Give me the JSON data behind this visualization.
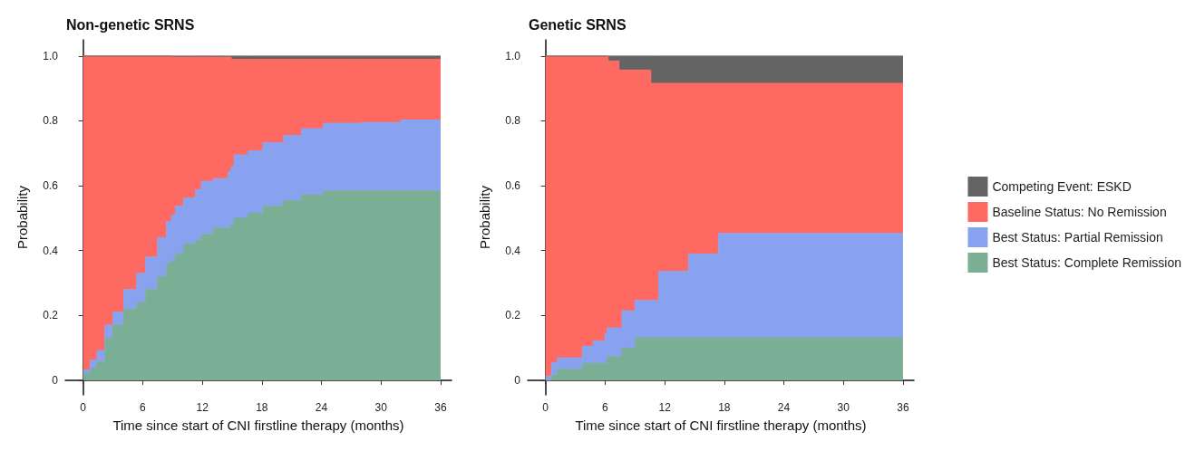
{
  "chart_data": [
    {
      "type": "area",
      "title": "Non-genetic SRNS",
      "xlabel": "Time since start of CNI firstline therapy (months)",
      "ylabel": "Probability",
      "stacked": true,
      "legend": false,
      "grid": false,
      "x": [
        0,
        0.7,
        0.7,
        1.4,
        1.4,
        2.2,
        2.2,
        3.0,
        3.0,
        4.1,
        4.1,
        5.4,
        5.4,
        6.3,
        6.3,
        7.5,
        7.5,
        8.4,
        8.4,
        8.9,
        8.9,
        9.3,
        9.3,
        10.1,
        10.1,
        11.3,
        11.3,
        11.9,
        11.9,
        13.1,
        13.1,
        14.6,
        14.6,
        14.9,
        14.9,
        15.2,
        15.2,
        16.6,
        16.6,
        18.1,
        18.1,
        20.2,
        20.2,
        22.0,
        22.0,
        24.2,
        24.2,
        28,
        28,
        32,
        32,
        36,
        36
      ],
      "xlim": [
        -1.8,
        37.1
      ],
      "xticks": [
        0,
        6,
        12,
        18,
        24,
        30,
        36
      ],
      "ylim": [
        -0.045,
        1.05
      ],
      "yticks": [
        0,
        0.2,
        0.4,
        0.6,
        0.8,
        {
          "value": 1,
          "label": "1.0"
        }
      ],
      "series": [
        {
          "color": "#7aaf95",
          "values": [
            0.02,
            0.02,
            0.037,
            0.037,
            0.058,
            0.058,
            0.13,
            0.13,
            0.17,
            0.17,
            0.22,
            0.22,
            0.24,
            0.24,
            0.28,
            0.28,
            0.32,
            0.32,
            0.36,
            0.36,
            0.37,
            0.37,
            0.39,
            0.39,
            0.42,
            0.42,
            0.43,
            0.43,
            0.45,
            0.45,
            0.47,
            0.47,
            0.47,
            0.47,
            0.48,
            0.48,
            0.5,
            0.5,
            0.515,
            0.515,
            0.537,
            0.537,
            0.554,
            0.554,
            0.571,
            0.571,
            0.584,
            0.584,
            0.584,
            0.584,
            0.584,
            0.584,
            0.584
          ]
        },
        {
          "color": "#89a2f0",
          "values": [
            0.012,
            0.012,
            0.025,
            0.025,
            0.034,
            0.034,
            0.04,
            0.04,
            0.04,
            0.04,
            0.06,
            0.06,
            0.09,
            0.09,
            0.1,
            0.1,
            0.12,
            0.12,
            0.13,
            0.13,
            0.14,
            0.14,
            0.147,
            0.147,
            0.142,
            0.142,
            0.158,
            0.158,
            0.164,
            0.164,
            0.152,
            0.152,
            0.173,
            0.173,
            0.18,
            0.18,
            0.195,
            0.195,
            0.193,
            0.193,
            0.196,
            0.196,
            0.201,
            0.201,
            0.205,
            0.205,
            0.209,
            0.209,
            0.211,
            0.211,
            0.219,
            0.219,
            0.219
          ]
        },
        {
          "color": "#fe6a62",
          "values": [
            0.968,
            0.968,
            0.938,
            0.938,
            0.908,
            0.908,
            0.83,
            0.83,
            0.79,
            0.79,
            0.72,
            0.72,
            0.67,
            0.67,
            0.62,
            0.62,
            0.56,
            0.56,
            0.51,
            0.51,
            0.487,
            0.487,
            0.46,
            0.46,
            0.435,
            0.435,
            0.409,
            0.409,
            0.383,
            0.383,
            0.375,
            0.375,
            0.354,
            0.354,
            0.33,
            0.33,
            0.295,
            0.295,
            0.282,
            0.282,
            0.257,
            0.257,
            0.235,
            0.235,
            0.214,
            0.214,
            0.197,
            0.197,
            0.195,
            0.195,
            0.187,
            0.187,
            0.187
          ]
        },
        {
          "color": "#646464",
          "values": [
            0,
            0,
            0,
            0,
            0,
            0,
            0,
            0,
            0,
            0,
            0,
            0,
            0,
            0,
            0,
            0,
            0,
            0,
            0,
            0,
            0.003,
            0.003,
            0.003,
            0.003,
            0.003,
            0.003,
            0.003,
            0.003,
            0.003,
            0.003,
            0.003,
            0.003,
            0.003,
            0.003,
            0.01,
            0.01,
            0.01,
            0.01,
            0.01,
            0.01,
            0.01,
            0.01,
            0.01,
            0.01,
            0.01,
            0.01,
            0.01,
            0.01,
            0.01,
            0.01,
            0.01,
            0.01,
            0.01
          ]
        }
      ]
    },
    {
      "type": "area",
      "title": "Genetic SRNS",
      "xlabel": "Time since start of CNI firstline therapy (months)",
      "ylabel": "Probability",
      "stacked": true,
      "legend": "right",
      "grid": false,
      "x": [
        0,
        0.6,
        0.6,
        1.2,
        1.2,
        3.7,
        3.7,
        4.8,
        4.8,
        6.0,
        6.0,
        6.2,
        6.2,
        6.3,
        6.3,
        7.4,
        7.4,
        7.7,
        7.7,
        9.0,
        9.0,
        10.6,
        10.6,
        11.4,
        11.4,
        14.4,
        14.4,
        17.4,
        17.4,
        36,
        36
      ],
      "xlim": [
        -1.8,
        37.1
      ],
      "xticks": [
        0,
        6,
        12,
        18,
        24,
        30,
        36
      ],
      "ylim": [
        -0.045,
        1.05
      ],
      "yticks": [
        0,
        0.2,
        0.4,
        0.6,
        0.8,
        {
          "value": 1,
          "label": "1.0"
        }
      ],
      "series": [
        {
          "name": "Best Status: Complete Remission",
          "color": "#7aaf95",
          "values": [
            0,
            0,
            0.015,
            0.015,
            0.034,
            0.034,
            0.052,
            0.052,
            0.052,
            0.052,
            0.052,
            0.052,
            0.073,
            0.073,
            0.073,
            0.073,
            0.073,
            0.073,
            0.099,
            0.099,
            0.131,
            0.131,
            0.131,
            0.131,
            0.131,
            0.131,
            0.131,
            0.131,
            0.131,
            0.131,
            0.131
          ]
        },
        {
          "name": "Best Status: Partial Remission",
          "color": "#89a2f0",
          "values": [
            0.013,
            0.013,
            0.039,
            0.039,
            0.035,
            0.035,
            0.053,
            0.053,
            0.07,
            0.07,
            0.092,
            0.092,
            0.089,
            0.089,
            0.089,
            0.089,
            0.089,
            0.089,
            0.115,
            0.115,
            0.115,
            0.115,
            0.115,
            0.115,
            0.205,
            0.205,
            0.258,
            0.258,
            0.322,
            0.322,
            0.322
          ]
        },
        {
          "name": "Baseline Status: No Remission",
          "color": "#fe6a62",
          "values": [
            0.987,
            0.987,
            0.946,
            0.946,
            0.931,
            0.931,
            0.895,
            0.895,
            0.878,
            0.878,
            0.856,
            0.856,
            0.838,
            0.838,
            0.823,
            0.823,
            0.795,
            0.795,
            0.743,
            0.743,
            0.711,
            0.711,
            0.67,
            0.67,
            0.58,
            0.58,
            0.527,
            0.527,
            0.463,
            0.463,
            0.463
          ]
        },
        {
          "name": "Competing Event: ESKD",
          "color": "#646464",
          "values": [
            0,
            0,
            0,
            0,
            0,
            0,
            0,
            0,
            0,
            0,
            0,
            0,
            0,
            0,
            0.015,
            0.015,
            0.043,
            0.043,
            0.043,
            0.043,
            0.043,
            0.043,
            0.084,
            0.084,
            0.084,
            0.084,
            0.084,
            0.084,
            0.084,
            0.084,
            0.084
          ]
        }
      ]
    }
  ]
}
